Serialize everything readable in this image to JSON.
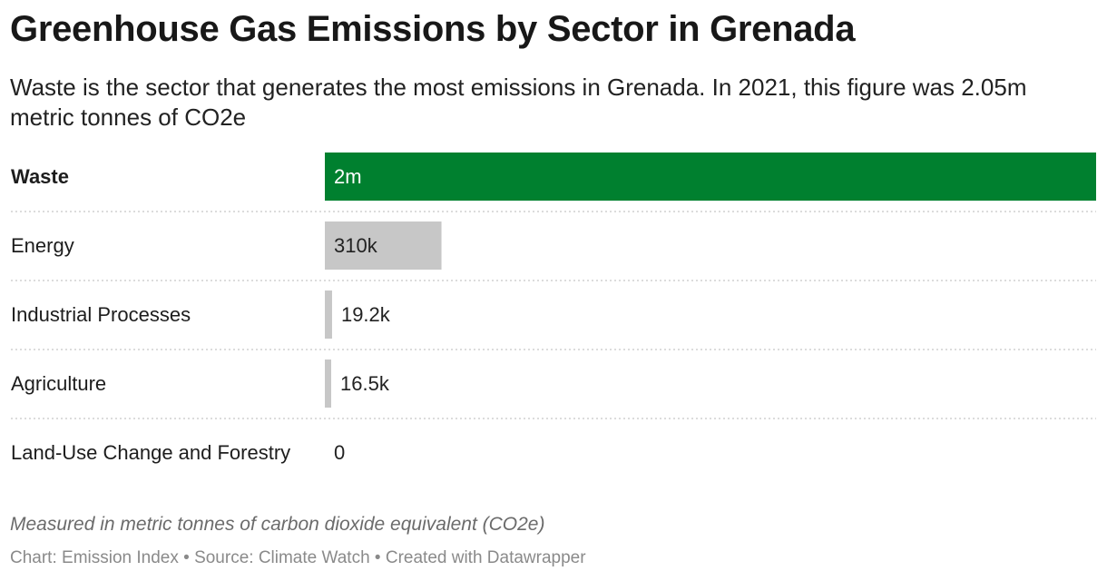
{
  "header": {
    "title": "Greenhouse Gas Emissions by Sector in Grenada",
    "subtitle": "Waste is the sector that generates the most emissions in Grenada. In 2021, this figure was 2.05m metric tonnes of CO2e"
  },
  "chart_data": {
    "type": "bar",
    "orientation": "horizontal",
    "categories": [
      "Waste",
      "Energy",
      "Industrial Processes",
      "Agriculture",
      "Land-Use Change and Forestry"
    ],
    "values": [
      2050000,
      310000,
      19200,
      16500,
      0
    ],
    "value_labels": [
      "2m",
      "310k",
      "19.2k",
      "16.5k",
      "0"
    ],
    "highlighted": [
      "Waste"
    ],
    "xlim": [
      0,
      2050000
    ],
    "grid": false,
    "colors": {
      "highlight": "#00802f",
      "default": "#c7c7c7",
      "label_on_highlight": "#ffffff",
      "label_default": "#222222",
      "row_divider": "#d0d0d0"
    }
  },
  "notes": "Measured in metric tonnes of carbon dioxide equivalent (CO2e)",
  "footer": {
    "text": "Chart: Emission Index • Source: Climate Watch • Created with Datawrapper"
  }
}
